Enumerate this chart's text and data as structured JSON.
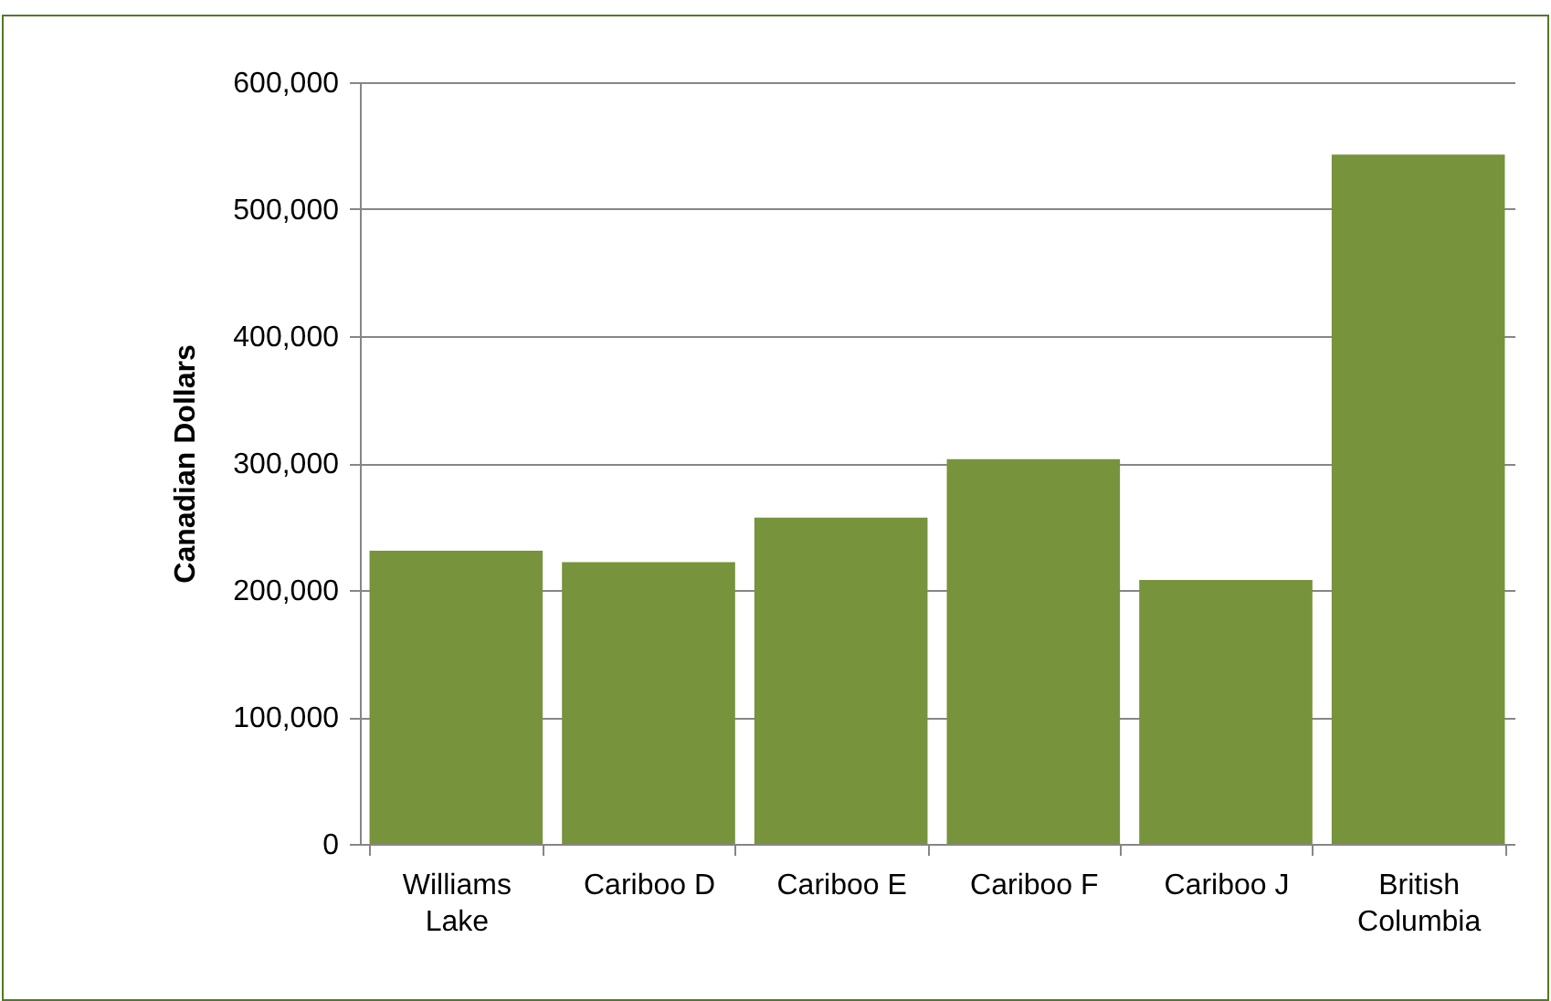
{
  "chart_data": {
    "type": "bar",
    "ylabel": "Canadian Dollars",
    "categories": [
      "Williams Lake",
      "Cariboo D",
      "Cariboo E",
      "Cariboo F",
      "Cariboo J",
      "British Columbia"
    ],
    "values": [
      231000,
      222000,
      257000,
      303000,
      208000,
      543000
    ],
    "color": "#77933c",
    "ylim": [
      0,
      600000
    ],
    "yticks": [
      0,
      {
        "value": 100000,
        "label": "100,000"
      },
      {
        "value": 200000,
        "label": "200,000"
      },
      {
        "value": 300000,
        "label": "300,000"
      },
      {
        "value": 400000,
        "label": "400,000"
      },
      {
        "value": 500000,
        "label": "500,000"
      },
      {
        "value": 600000,
        "label": "600,000"
      }
    ],
    "grid": "y"
  }
}
